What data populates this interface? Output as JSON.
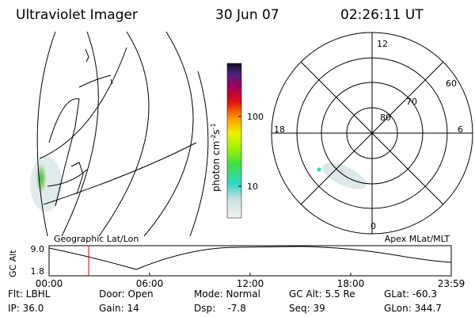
{
  "header": {
    "instrument": "Ultraviolet Imager",
    "date": "30 Jun 07",
    "time": "02:26:11 UT"
  },
  "colorbar": {
    "label": [
      "photon cm",
      "-2",
      "s",
      "-1"
    ],
    "ticks": [
      "100",
      "10"
    ]
  },
  "polar": {
    "mlt_labels": [
      "12",
      "6",
      "0",
      "18"
    ],
    "lat_labels": [
      "60",
      "70",
      "80"
    ]
  },
  "panel_titles": {
    "left": "Geographic Lat/Lon",
    "right": "Apex MLat/MLT"
  },
  "altitude_plot": {
    "ylabel": "GC Alt",
    "yticks": [
      "9.0",
      "1.8"
    ],
    "xticks": [
      "00:00",
      "06:00",
      "12:00",
      "18:00",
      "23:59"
    ]
  },
  "footer": {
    "rows": [
      [
        "Flt: LBHL",
        "Door: Open",
        "Mode: Normal",
        "GC Alt: 5.5 Re",
        "GLat: -60.3"
      ],
      [
        "IP: 36.0",
        "Gain: 14",
        "Dsp:    -7.8",
        "Seq: 39",
        "GLon: 344.7"
      ]
    ]
  }
}
